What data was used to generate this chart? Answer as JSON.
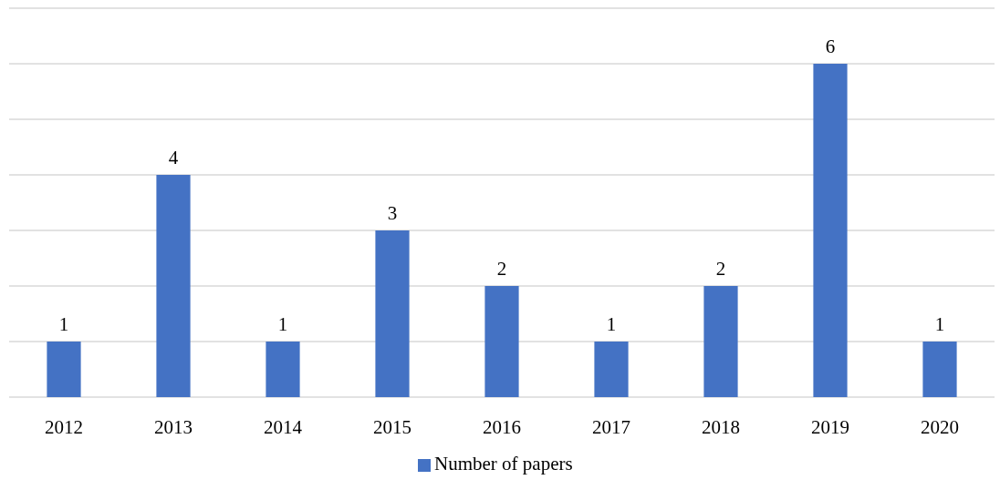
{
  "chart_data": {
    "type": "bar",
    "categories": [
      "2012",
      "2013",
      "2014",
      "2015",
      "2016",
      "2017",
      "2018",
      "2019",
      "2020"
    ],
    "series": [
      {
        "name": "Number of papers",
        "color": "#4472c4",
        "values": [
          1,
          4,
          1,
          3,
          2,
          1,
          2,
          6,
          1
        ]
      }
    ],
    "ylim": [
      0,
      7
    ],
    "yticks": [
      {
        "value": 0,
        "label": null
      },
      {
        "value": 1,
        "label": null
      },
      {
        "value": 2,
        "label": null
      },
      {
        "value": 3,
        "label": null
      },
      {
        "value": 4,
        "label": null
      },
      {
        "value": 5,
        "label": null
      },
      {
        "value": 6,
        "label": null
      },
      {
        "value": 7,
        "label": null
      }
    ],
    "grid": "y",
    "tick_labels": "x",
    "data_labels": true,
    "legend": "bottom"
  }
}
